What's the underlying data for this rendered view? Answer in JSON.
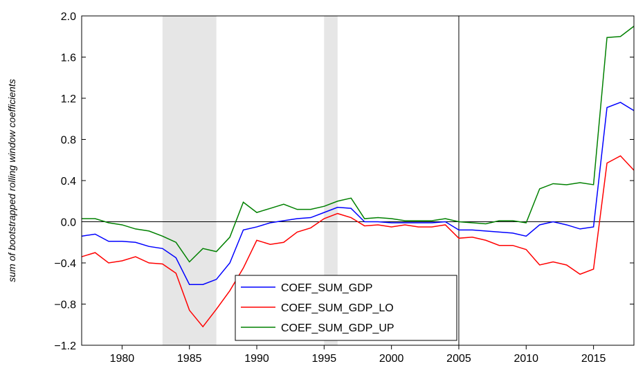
{
  "chart_data": {
    "type": "line",
    "y_label": "sum of bootstrapped rolling window coefficients",
    "x": [
      1977,
      1978,
      1979,
      1980,
      1981,
      1982,
      1983,
      1984,
      1985,
      1986,
      1987,
      1988,
      1989,
      1990,
      1991,
      1992,
      1993,
      1994,
      1995,
      1996,
      1997,
      1998,
      1999,
      2000,
      2001,
      2002,
      2003,
      2004,
      2005,
      2006,
      2007,
      2008,
      2009,
      2010,
      2011,
      2012,
      2013,
      2014,
      2015,
      2016,
      2017,
      2018
    ],
    "series": [
      {
        "name": "COEF_SUM_GDP",
        "color": "#0000ff",
        "values": [
          -0.14,
          -0.12,
          -0.19,
          -0.19,
          -0.2,
          -0.24,
          -0.26,
          -0.35,
          -0.61,
          -0.61,
          -0.56,
          -0.4,
          -0.08,
          -0.05,
          -0.01,
          0.01,
          0.03,
          0.04,
          0.09,
          0.14,
          0.13,
          0.0,
          0.0,
          -0.01,
          -0.01,
          -0.01,
          -0.01,
          0.0,
          -0.08,
          -0.08,
          -0.09,
          -0.1,
          -0.11,
          -0.14,
          -0.03,
          0.0,
          -0.03,
          -0.07,
          -0.05,
          1.11,
          1.16,
          1.08
        ]
      },
      {
        "name": "COEF_SUM_GDP_LO",
        "color": "#ff0000",
        "values": [
          -0.34,
          -0.3,
          -0.4,
          -0.38,
          -0.34,
          -0.4,
          -0.41,
          -0.5,
          -0.86,
          -1.02,
          -0.85,
          -0.67,
          -0.45,
          -0.18,
          -0.22,
          -0.2,
          -0.1,
          -0.06,
          0.03,
          0.08,
          0.04,
          -0.04,
          -0.03,
          -0.05,
          -0.03,
          -0.05,
          -0.05,
          -0.03,
          -0.16,
          -0.15,
          -0.18,
          -0.23,
          -0.23,
          -0.27,
          -0.42,
          -0.39,
          -0.42,
          -0.51,
          -0.46,
          0.57,
          0.64,
          0.5
        ]
      },
      {
        "name": "COEF_SUM_GDP_UP",
        "color": "#008000",
        "values": [
          0.03,
          0.03,
          -0.01,
          -0.03,
          -0.07,
          -0.09,
          -0.14,
          -0.2,
          -0.39,
          -0.26,
          -0.29,
          -0.15,
          0.19,
          0.09,
          0.13,
          0.17,
          0.12,
          0.12,
          0.15,
          0.2,
          0.23,
          0.03,
          0.04,
          0.03,
          0.01,
          0.01,
          0.01,
          0.03,
          0.0,
          -0.01,
          -0.02,
          0.01,
          0.01,
          -0.01,
          0.32,
          0.37,
          0.36,
          0.38,
          0.36,
          1.79,
          1.8,
          1.9
        ]
      }
    ],
    "xlim": [
      1977,
      2018
    ],
    "xticks": [
      1980,
      1985,
      1990,
      1995,
      2000,
      2005,
      2010,
      2015
    ],
    "ylim": [
      -1.2,
      2.0
    ],
    "yticks": [
      {
        "value": -1.2,
        "label": "−1.2"
      },
      {
        "value": -0.8,
        "label": "−0.8"
      },
      {
        "value": -0.4,
        "label": "−0.4"
      },
      {
        "value": 0,
        "label": "0.0"
      },
      {
        "value": 0.4,
        "label": "0.4"
      },
      {
        "value": 0.8,
        "label": "0.8"
      },
      {
        "value": 1.2,
        "label": "1.2"
      },
      {
        "value": 1.6,
        "label": "1.6"
      },
      {
        "value": 2,
        "label": "2.0"
      }
    ],
    "shaded_regions": [
      [
        1983,
        1987
      ],
      [
        1995,
        1996
      ]
    ],
    "shade_color": "#e6e6e6",
    "vline": 2005,
    "legend": "lower center"
  }
}
